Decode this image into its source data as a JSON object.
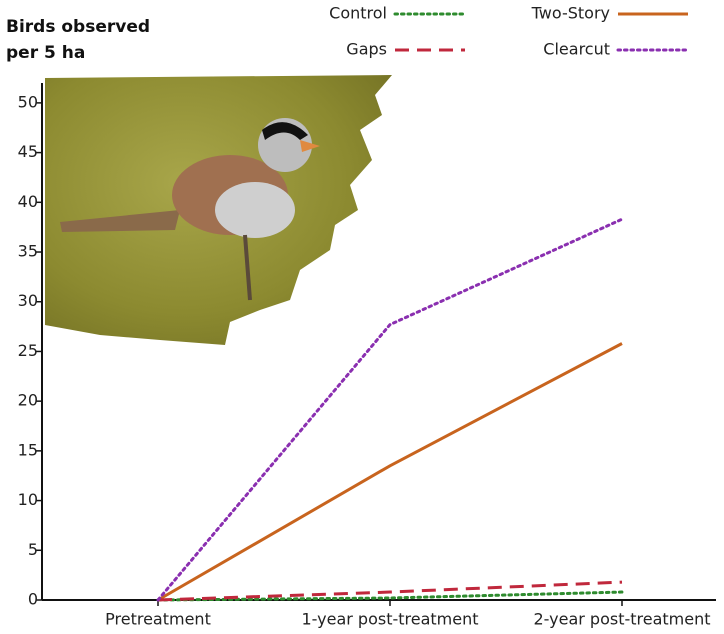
{
  "chart_data": {
    "type": "line",
    "title": "Birds observed per 5 ha",
    "categories": [
      "Pretreatment",
      "1-year post-treatment",
      "2-year post-treatment"
    ],
    "series": [
      {
        "name": "Control",
        "color": "#2e8b2e",
        "style": "dotted",
        "values": [
          0,
          0.2,
          0.8
        ]
      },
      {
        "name": "Two-Story",
        "color": "#c8641e",
        "style": "solid",
        "values": [
          0,
          13.5,
          25.8
        ]
      },
      {
        "name": "Gaps",
        "color": "#c0283c",
        "style": "dashed",
        "values": [
          0,
          0.8,
          1.8
        ]
      },
      {
        "name": "Clearcut",
        "color": "#8a2fb0",
        "style": "dotted",
        "values": [
          0,
          27.7,
          38.3
        ]
      }
    ],
    "ylim": [
      0,
      52
    ],
    "yticks": [
      0,
      5,
      10,
      15,
      20,
      25,
      30,
      35,
      40,
      45,
      50
    ]
  }
}
